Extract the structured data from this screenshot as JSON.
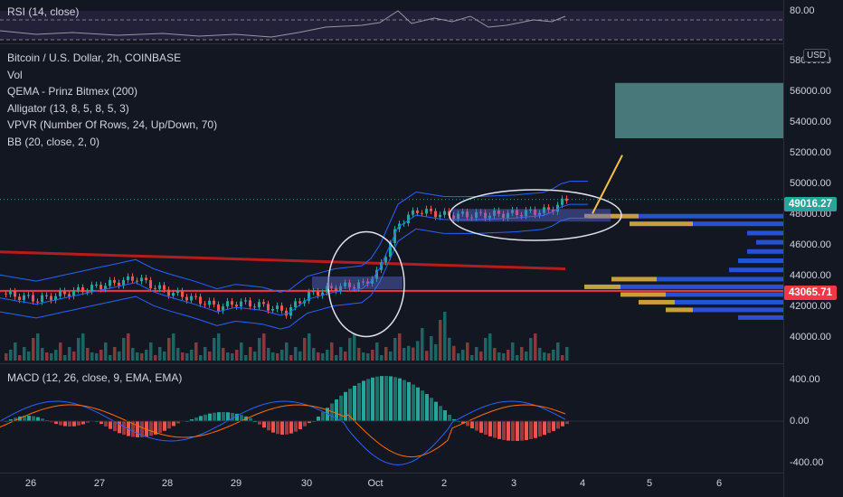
{
  "rsi": {
    "label": "RSI (14, close)",
    "tick": "80.00",
    "line_color": "#9598a1",
    "band_color": "#7e57c2"
  },
  "main": {
    "legend": [
      "Bitcoin / U.S. Dollar, 2h, COINBASE",
      "Vol",
      "QEMA - Prinz Bitmex (200)",
      "Alligator (13, 8, 5, 8, 5, 3)",
      "VPVR (Number Of Rows, 24, Up/Down, 70)",
      "BB (20, close, 2, 0)"
    ],
    "currency_badge": "USD",
    "price_ticks": [
      "58000.00",
      "56000.00",
      "54000.00",
      "52000.00",
      "50000.00",
      "48000.00",
      "46000.00",
      "44000.00",
      "42000.00",
      "40000.00"
    ],
    "last_price_label": "49016.27",
    "last_price_color": "#26a69a",
    "line_price_label": "43065.71",
    "line_price_color": "#f23645",
    "up_color": "#26a69a",
    "down_color": "#ef5350",
    "trend_line_color": "#b71c1c",
    "bb_color": "#2962ff",
    "target_box_color": "#5b9a97",
    "arrow_color": "#f5c242"
  },
  "macd": {
    "label": "MACD (12, 26, close, 9, EMA, EMA)",
    "ticks": [
      "400.00",
      "0.00",
      "-400.00"
    ],
    "macd_color": "#2962ff",
    "signal_color": "#ff6d00"
  },
  "time_axis": {
    "ticks": [
      "26",
      "27",
      "28",
      "29",
      "30",
      "Oct",
      "2",
      "3",
      "4",
      "5",
      "6"
    ]
  },
  "chart_data": {
    "type": "candlestick",
    "title": "Bitcoin / U.S. Dollar, 2h, COINBASE",
    "x_ticks": [
      "26",
      "27",
      "28",
      "29",
      "30",
      "Oct",
      "2",
      "3",
      "4",
      "5",
      "6"
    ],
    "ylim": [
      39000,
      59000
    ],
    "last_price": 49016.27,
    "horizontal_level": 43065.71,
    "target_zone": [
      53000,
      56600
    ],
    "close_path": [
      {
        "x": "26",
        "y": 42900
      },
      {
        "x": "26.5",
        "y": 42500
      },
      {
        "x": "27",
        "y": 43400
      },
      {
        "x": "27.3",
        "y": 43900
      },
      {
        "x": "27.6",
        "y": 43300
      },
      {
        "x": "28",
        "y": 43000
      },
      {
        "x": "28.3",
        "y": 42500
      },
      {
        "x": "28.6",
        "y": 42000
      },
      {
        "x": "29",
        "y": 42300
      },
      {
        "x": "29.4",
        "y": 42100
      },
      {
        "x": "29.7",
        "y": 41700
      },
      {
        "x": "30",
        "y": 42800
      },
      {
        "x": "30.4",
        "y": 43300
      },
      {
        "x": "30.8",
        "y": 43500
      },
      {
        "x": "Oct",
        "y": 44200
      },
      {
        "x": "Oct.3",
        "y": 47500
      },
      {
        "x": "Oct.6",
        "y": 48300
      },
      {
        "x": "2",
        "y": 48000
      },
      {
        "x": "2.5",
        "y": 48000
      },
      {
        "x": "3",
        "y": 48100
      },
      {
        "x": "3.5",
        "y": 48300
      },
      {
        "x": "3.7",
        "y": 49000
      }
    ]
  }
}
